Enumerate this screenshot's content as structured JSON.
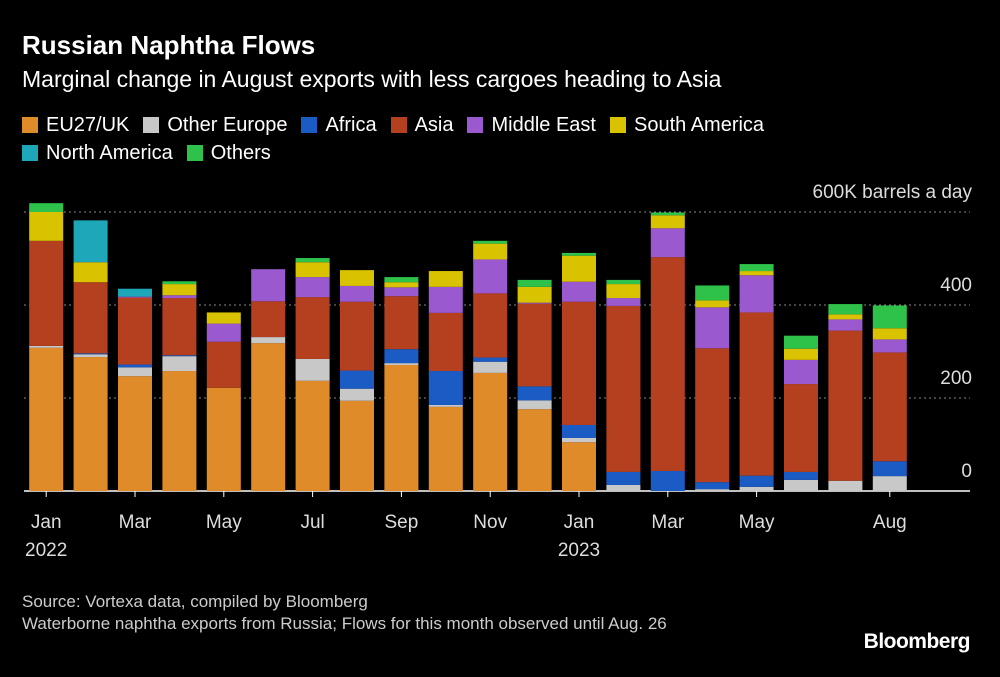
{
  "chart_data": {
    "type": "stacked_bar",
    "title": "Russian Naphtha Flows",
    "subtitle": "Marginal change in August exports with less cargoes heading to Asia",
    "categories": [
      "Jan",
      null,
      "Mar",
      null,
      "May",
      null,
      "Jul",
      null,
      "Sep",
      null,
      "Nov",
      null,
      "Jan",
      null,
      "Mar",
      null,
      "May",
      null,
      null,
      "Aug"
    ],
    "category_years": [
      "2022",
      null,
      null,
      null,
      null,
      null,
      null,
      null,
      null,
      null,
      null,
      null,
      "2023",
      null,
      null,
      null,
      null,
      null,
      null,
      null
    ],
    "ylim": [
      0,
      640
    ],
    "yticks": [
      0,
      200,
      400,
      {
        "value": 600,
        "label": "600K barrels a day"
      }
    ],
    "grid": true,
    "series": [
      {
        "name": "EU27/UK",
        "color": "#e08b2a",
        "values": [
          308,
          288,
          247,
          258,
          222,
          318,
          237,
          194,
          271,
          181,
          254,
          176,
          105,
          0,
          0,
          0,
          0,
          0,
          0,
          0
        ]
      },
      {
        "name": "Other Europe",
        "color": "#c8c8c8",
        "values": [
          4,
          6,
          19,
          32,
          0,
          13,
          47,
          26,
          4,
          4,
          24,
          19,
          9,
          13,
          0,
          4,
          9,
          24,
          22,
          32
        ]
      },
      {
        "name": "Africa",
        "color": "#1a5bc4",
        "values": [
          0,
          2,
          6,
          2,
          0,
          0,
          0,
          39,
          30,
          73,
          9,
          30,
          28,
          28,
          43,
          15,
          24,
          17,
          0,
          32
        ]
      },
      {
        "name": "Asia",
        "color": "#b5401f",
        "values": [
          226,
          153,
          144,
          123,
          99,
          77,
          133,
          148,
          114,
          125,
          138,
          178,
          265,
          357,
          460,
          288,
          351,
          189,
          323,
          234
        ]
      },
      {
        "name": "Middle East",
        "color": "#9b59d0",
        "values": [
          0,
          0,
          2,
          6,
          39,
          69,
          43,
          34,
          19,
          56,
          73,
          2,
          43,
          17,
          62,
          88,
          80,
          52,
          24,
          28
        ]
      },
      {
        "name": "South America",
        "color": "#d9c200",
        "values": [
          62,
          43,
          0,
          24,
          24,
          0,
          32,
          34,
          11,
          34,
          34,
          34,
          56,
          30,
          28,
          15,
          9,
          24,
          11,
          24
        ]
      },
      {
        "name": "North America",
        "color": "#1ea7b8",
        "values": [
          0,
          90,
          17,
          0,
          0,
          0,
          0,
          0,
          0,
          0,
          0,
          0,
          0,
          0,
          0,
          0,
          0,
          0,
          0,
          0
        ]
      },
      {
        "name": "Others",
        "color": "#2fc24a",
        "values": [
          19,
          0,
          0,
          6,
          0,
          0,
          9,
          0,
          11,
          0,
          6,
          15,
          6,
          9,
          6,
          32,
          15,
          28,
          22,
          49
        ]
      }
    ],
    "source": "Source: Vortexa data, compiled by Bloomberg",
    "note": "Waterborne naphtha exports from Russia; Flows for this month observed until Aug. 26",
    "brand": "Bloomberg"
  }
}
